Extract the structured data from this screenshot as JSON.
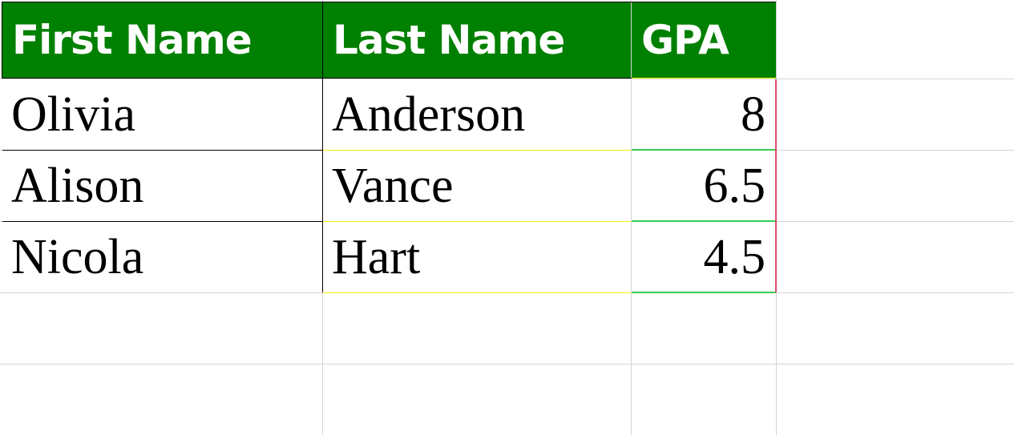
{
  "table": {
    "headers": [
      "First Name",
      "Last Name",
      "GPA"
    ],
    "rows": [
      [
        "Olivia",
        "Anderson",
        "8"
      ],
      [
        "Alison",
        "Vance",
        "6.5"
      ],
      [
        "Nicola",
        "Hart",
        "4.5"
      ]
    ]
  },
  "colors": {
    "header_bg": "#008000",
    "header_text": "#ffffff",
    "gridline": "#d4d4d4"
  }
}
